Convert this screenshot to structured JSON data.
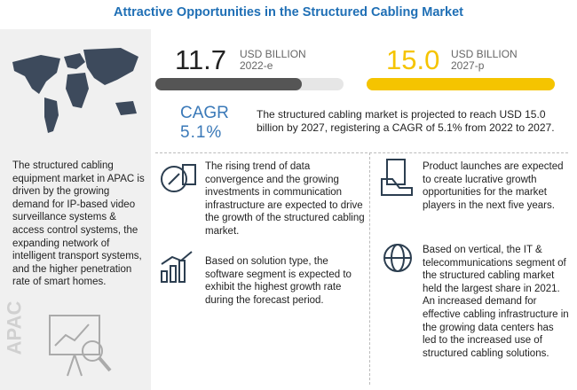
{
  "title": "Attractive Opportunities in the Structured Cabling Market",
  "metrics": [
    {
      "value": {
        "value": 11.7,
        "label": "11.7"
      },
      "unit": "USD BILLION",
      "year": "2022-e"
    },
    {
      "value": {
        "value": 15.0,
        "label": "15.0"
      },
      "unit": "USD BILLION",
      "year": "2027-p"
    }
  ],
  "cagr": {
    "label": "CAGR",
    "value": "5.1%"
  },
  "summary": "The structured cabling market is projected to reach USD 15.0 billion by 2027, registering a CAGR of 5.1% from 2022 to 2027.",
  "apac": {
    "label": "APAC",
    "text": "The structured cabling equipment market in APAC is driven by the growing demand for IP-based video surveillance systems & access control systems, the expanding network of intelligent transport systems, and the higher penetration rate of smart homes."
  },
  "insights": [
    "The rising trend of data convergence and the growing investments in communication infrastructure are expected to drive the growth of the structured cabling market.",
    "Based on solution type, the software segment is expected to exhibit the highest growth rate during the forecast period.",
    "Product launches are expected to create lucrative growth opportunities for the market players in the next five years.",
    "Based on vertical, the IT & telecommunications segment of the structured cabling market held the largest share in 2021. An increased demand for effective cabling infrastructure in the growing data centers has led to the increased use of structured cabling solutions."
  ]
}
